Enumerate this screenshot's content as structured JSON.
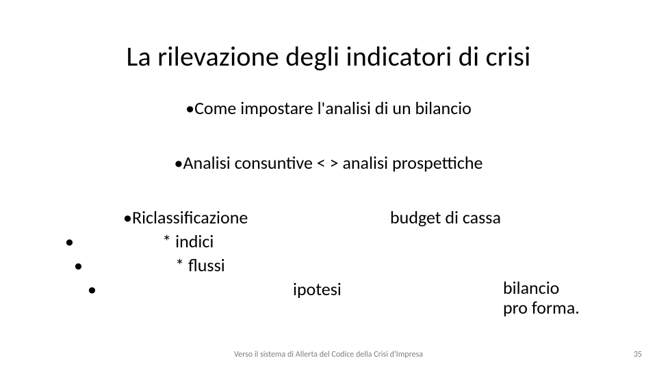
{
  "title": "La rilevazione degli indicatori di crisi",
  "line1": "Come impostare  l'analisi  di un bilancio",
  "line2": "Analisi  consuntive  < > analisi prospettiche",
  "line3_left": "Riclassificazione",
  "line3_right": "budget di cassa",
  "line4": "*   indici",
  "line5": "*   flussi",
  "line6_mid": "ipotesi",
  "line6_right_a": "bilancio",
  "line6_right_b": "pro forma.",
  "footer": "Verso il sistema di Allerta del Codice della Crisi d'Impresa",
  "page": "35",
  "colors": {
    "text": "#000000",
    "footer": "#7f7f7f",
    "background": "#ffffff"
  },
  "fontsize": {
    "title": 40,
    "body": 26,
    "footer": 12
  }
}
